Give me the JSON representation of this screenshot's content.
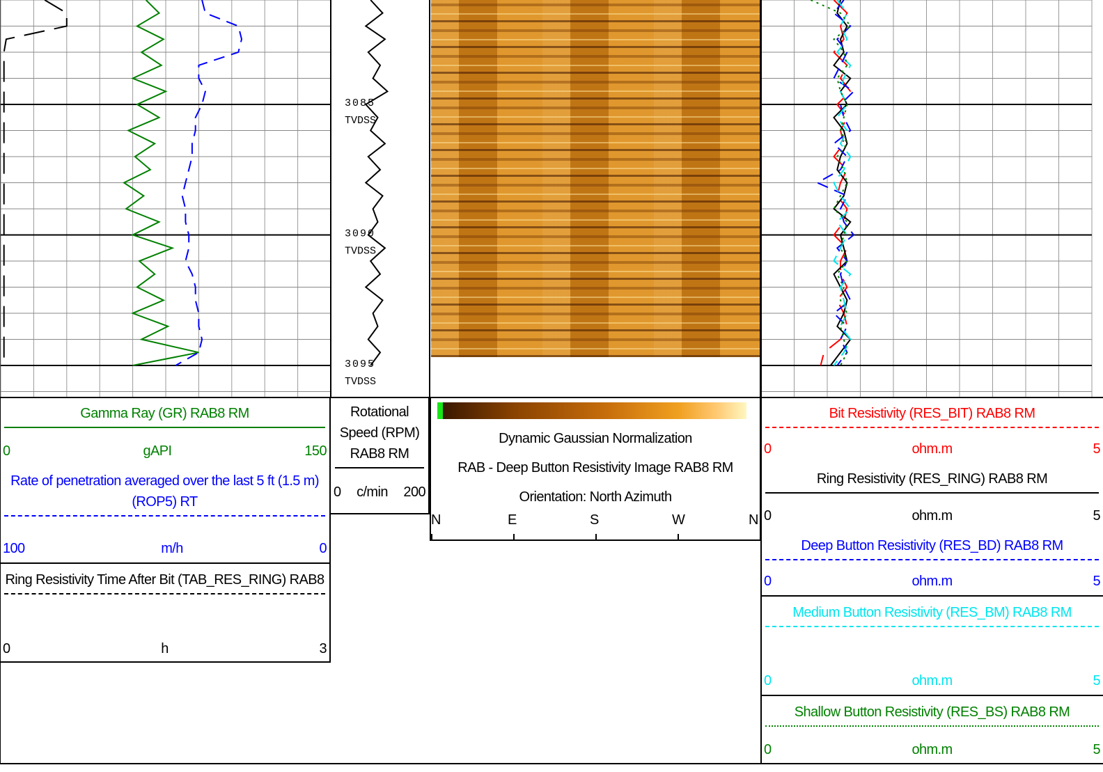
{
  "chart_data": {
    "type": "line",
    "depth_range": [
      3081,
      3096.2
    ],
    "depth_ticks": [
      3085,
      3090,
      3095
    ],
    "depth_unit": "TVDSS",
    "depth_grid": [
      3081,
      3082,
      3083,
      3084,
      3085,
      3086,
      3087,
      3088,
      3089,
      3090,
      3091,
      3092,
      3093,
      3094,
      3095,
      3096
    ],
    "depths": [
      3081,
      3081.5,
      3082,
      3082.5,
      3083,
      3083.5,
      3084,
      3084.5,
      3085,
      3085.5,
      3086,
      3086.5,
      3087,
      3087.5,
      3088,
      3088.5,
      3089,
      3089.5,
      3090,
      3090.5,
      3091,
      3091.5,
      3092,
      3092.5,
      3093,
      3093.5,
      3094,
      3094.5,
      3095
    ],
    "tracks": [
      {
        "xticks": [
          0,
          15,
          30,
          45,
          60,
          75,
          90,
          105,
          120,
          135,
          150
        ],
        "curves": [
          {
            "name": "Gamma Ray (GR) RAB8 RM",
            "unit": "gAPI",
            "color": "#008000",
            "dash": "solid",
            "xlim": [
              0,
              150
            ],
            "values": [
              66,
              72,
              62,
              74,
              64,
              73,
              60,
              75,
              62,
              72,
              58,
              70,
              61,
              68,
              56,
              65,
              57,
              72,
              60,
              78,
              63,
              70,
              62,
              74,
              60,
              76,
              64,
              90,
              60
            ]
          },
          {
            "name": "Rate of penetration averaged over the last 5 ft (1.5 m) (ROP5) RT",
            "unit": "m/h",
            "color": "#0000ff",
            "dash": "dashed",
            "xlim": [
              100,
              0
            ],
            "values": [
              39,
              38,
              28,
              27,
              28,
              40,
              40,
              38,
              39,
              41,
              41,
              42,
              42,
              43,
              44,
              45,
              44,
              44,
              43,
              43,
              44,
              42,
              41,
              41,
              40,
              40,
              39,
              40,
              47
            ]
          },
          {
            "name": "Ring Resistivity Time After Bit (TAB_RES_RING) RAB8",
            "unit": "h",
            "color": "#000000",
            "dash": "longdash",
            "xlim": [
              0,
              3
            ],
            "values": [
              0.4,
              0.6,
              0.6,
              0.05,
              0.03,
              0.03,
              0.03,
              0.03,
              0.03,
              0.03,
              0.03,
              0.03,
              0.03,
              0.03,
              0.03,
              0.03,
              0.03,
              0.03,
              0.03,
              0.03,
              0.03,
              0.03,
              0.03,
              0.03,
              0.03,
              0.03,
              0.03,
              0.03,
              0.03
            ]
          }
        ]
      },
      {
        "xticks": [],
        "curves": [
          {
            "name": "Rotational Speed (RPM) RAB8 RM",
            "unit": "c/min",
            "color": "#000000",
            "dash": "solid",
            "xlim": [
              0,
              200
            ],
            "values": [
              80,
              105,
              70,
              110,
              75,
              100,
              85,
              115,
              70,
              95,
              80,
              110,
              75,
              100,
              70,
              105,
              85,
              95,
              75,
              110,
              80,
              100,
              70,
              105,
              85,
              95,
              75,
              100,
              80
            ]
          }
        ]
      },
      {
        "image": {
          "title_lines": [
            "Dynamic Gaussian Normalization",
            "RAB - Deep Button Resistivity Image RAB8 RM",
            "Orientation: North Azimuth"
          ],
          "orientation": [
            "N",
            "E",
            "S",
            "W",
            "N"
          ]
        }
      },
      {
        "xticks": [
          0,
          0.5,
          1,
          1.5,
          2,
          2.5,
          3,
          3.5,
          4,
          4.5,
          5
        ],
        "curves": [
          {
            "name": "Bit Resistivity (RES_BIT) RAB8 RM",
            "unit": "ohm.m",
            "color": "#ff0000",
            "dash": "longdash",
            "xlim": [
              0,
              5
            ],
            "values": [
              1.1,
              1.3,
              1.2,
              1.25,
              1.1,
              1.3,
              1.2,
              1.35,
              1.15,
              1.3,
              1.2,
              1.25,
              1.1,
              1.3,
              1.2,
              1.15,
              1.3,
              1.25,
              1.1,
              1.3,
              1.2,
              1.2,
              1.3,
              1.15,
              1.25,
              1.3,
              1.2,
              0.95,
              0.9
            ]
          },
          {
            "name": "Ring Resistivity (RES_RING) RAB8 RM",
            "unit": "ohm.m",
            "color": "#000000",
            "dash": "solid",
            "xlim": [
              0,
              5
            ],
            "values": [
              1.2,
              1.15,
              1.3,
              1.2,
              1.25,
              1.1,
              1.35,
              1.2,
              1.3,
              1.1,
              1.25,
              1.3,
              1.2,
              1.15,
              1.3,
              1.25,
              1.1,
              1.35,
              1.2,
              1.25,
              1.3,
              1.1,
              1.2,
              1.3,
              1.25,
              1.15,
              1.35,
              1.2,
              1.05
            ]
          },
          {
            "name": "Deep Button Resistivity (RES_BD) RAB8 RM",
            "unit": "ohm.m",
            "color": "#0000ff",
            "dash": "dashed",
            "xlim": [
              0,
              5
            ],
            "values": [
              1.25,
              1.1,
              1.35,
              1.15,
              1.3,
              1.2,
              1.1,
              1.4,
              1.2,
              1.25,
              1.35,
              1.1,
              1.3,
              1.2,
              0.85,
              1.3,
              1.2,
              1.25,
              1.4,
              1.15,
              1.3,
              1.2,
              1.25,
              1.35,
              1.1,
              1.3,
              1.2,
              1.3,
              1.15
            ]
          },
          {
            "name": "Medium Button Resistivity (RES_BM) RAB8 RM",
            "unit": "ohm.m",
            "color": "#00e5ee",
            "dash": "dashed",
            "xlim": [
              0,
              5
            ],
            "values": [
              1.15,
              1.3,
              1.2,
              1.3,
              1.15,
              1.35,
              1.25,
              1.2,
              1.3,
              1.15,
              1.3,
              1.2,
              1.35,
              1.25,
              1.1,
              1.2,
              1.35,
              1.15,
              1.3,
              1.2,
              1.1,
              1.35,
              1.2,
              1.25,
              1.3,
              1.2,
              1.35,
              1.25,
              1.1
            ]
          },
          {
            "name": "Shallow Button Resistivity (RES_BS) RAB8 RM",
            "unit": "ohm.m",
            "color": "#008000",
            "dash": "dotted",
            "xlim": [
              0,
              5
            ],
            "values": [
              0.75,
              1.2,
              1.35,
              1.1,
              1.25,
              1.3,
              1.15,
              1.2,
              1.3,
              1.25,
              1.2,
              1.3,
              1.15,
              1.25,
              1.3,
              1.2,
              1.1,
              1.3,
              1.25,
              1.2,
              1.3,
              1.15,
              1.25,
              1.2,
              1.3,
              1.2,
              1.25,
              1.3,
              1.2
            ]
          }
        ]
      }
    ]
  }
}
